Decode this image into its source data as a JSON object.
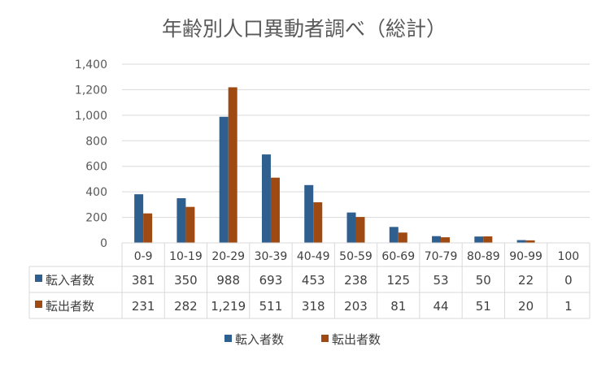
{
  "chart_data": {
    "type": "bar",
    "title": "年齢別人口異動者調べ（総計）",
    "categories": [
      "0-9",
      "10-19",
      "20-29",
      "30-39",
      "40-49",
      "50-59",
      "60-69",
      "70-79",
      "80-89",
      "90-99",
      "100"
    ],
    "series": [
      {
        "name": "転入者数",
        "color": "#2e5f8f",
        "values": [
          381,
          350,
          988,
          693,
          453,
          238,
          125,
          53,
          50,
          22,
          0
        ],
        "labels": [
          "381",
          "350",
          "988",
          "693",
          "453",
          "238",
          "125",
          "53",
          "50",
          "22",
          "0"
        ]
      },
      {
        "name": "転出者数",
        "color": "#9e4a12",
        "values": [
          231,
          282,
          1219,
          511,
          318,
          203,
          81,
          44,
          51,
          20,
          1
        ],
        "labels": [
          "231",
          "282",
          "1,219",
          "511",
          "318",
          "203",
          "81",
          "44",
          "51",
          "20",
          "1"
        ]
      }
    ],
    "ylim": [
      0,
      1400
    ],
    "yticks": [
      0,
      200,
      400,
      600,
      800,
      1000,
      1200,
      1400
    ],
    "ytick_labels": [
      "0",
      "200",
      "400",
      "600",
      "800",
      "1,000",
      "1,200",
      "1,400"
    ],
    "grid": true,
    "data_table": true,
    "legend_position": "bottom"
  }
}
